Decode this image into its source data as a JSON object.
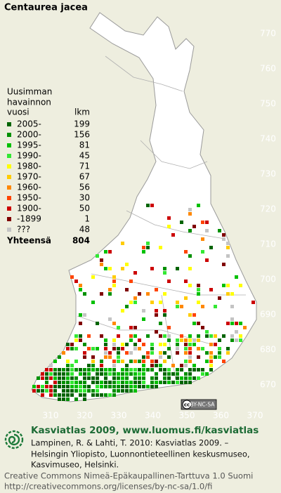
{
  "title": "Centaurea jacea",
  "legend": {
    "heading": [
      "Uusimman",
      "havainnon",
      "vuosi"
    ],
    "count_heading": "lkm",
    "rows": [
      {
        "label": "2005-",
        "count": 199,
        "color": "#006400"
      },
      {
        "label": "2000-",
        "count": 156,
        "color": "#009000"
      },
      {
        "label": "1995-",
        "count": 81,
        "color": "#00c000"
      },
      {
        "label": "1990-",
        "count": 45,
        "color": "#33e833"
      },
      {
        "label": "1980-",
        "count": 71,
        "color": "#ffff00"
      },
      {
        "label": "1970-",
        "count": 67,
        "color": "#ffcc00"
      },
      {
        "label": "1960-",
        "count": 56,
        "color": "#ff8800"
      },
      {
        "label": "1950-",
        "count": 30,
        "color": "#ff4400"
      },
      {
        "label": "1900-",
        "count": 50,
        "color": "#cc0000"
      },
      {
        "label": "-1899",
        "count": 1,
        "color": "#800000"
      },
      {
        "label": "???",
        "count": 48,
        "color": "#c4c4c4"
      }
    ],
    "total_label": "Yhteensä",
    "total": 804
  },
  "grid": {
    "northing": [
      770,
      760,
      750,
      740,
      730,
      720,
      710,
      700,
      690,
      680,
      670
    ],
    "easting": [
      310,
      320,
      330,
      340,
      350,
      360,
      370
    ]
  },
  "badge": {
    "icon": "cc",
    "text": "BY-NC-SA"
  },
  "footer": {
    "title": "Kasviatlas 2009, www.luomus.fi/kasviatlas",
    "citation": [
      "Lampinen, R. & Lahti, T. 2010: Kasviatlas 2009. –",
      "Helsingin Yliopisto, Luonnontieteellinen keskusmuseo,",
      "Kasvimuseo, Helsinki."
    ],
    "license": [
      "Creative Commons Nimeä-Epäkaupallinen-Tarttuva 1.0 Suomi",
      "http://creativecommons.org/licenses/by-nc-sa/1.0/fi"
    ]
  }
}
